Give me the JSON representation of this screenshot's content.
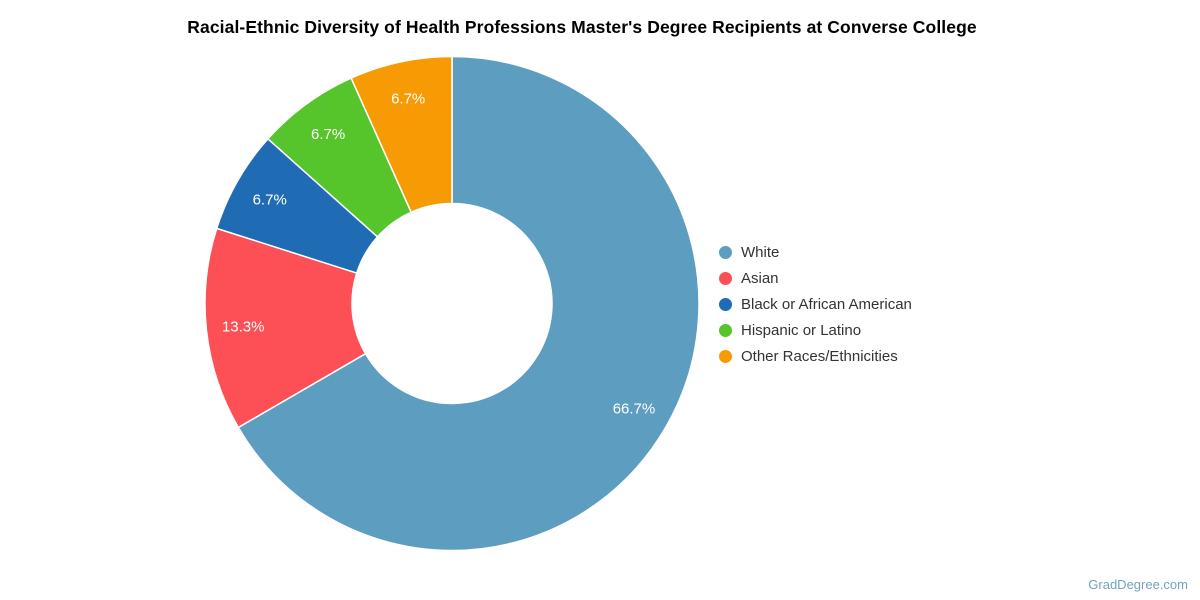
{
  "page": {
    "watermark": "GradDegree.com"
  },
  "chart_data": {
    "type": "pie",
    "subtype": "donut",
    "title": "Racial-Ethnic Diversity of Health Professions Master's Degree Recipients at Converse College",
    "unit": "%",
    "direction": "clockwise",
    "start_angle_deg": 0,
    "inner_radius_ratio": 0.405,
    "legend_position": "right",
    "slice_label_color": "#ffffff",
    "slices": [
      {
        "label": "White",
        "value": 66.7,
        "pct_label": "66.7%",
        "color": "#5d9dbf"
      },
      {
        "label": "Asian",
        "value": 13.3,
        "pct_label": "13.3%",
        "color": "#fc4f56"
      },
      {
        "label": "Black or African American",
        "value": 6.7,
        "pct_label": "6.7%",
        "color": "#1f6cb4"
      },
      {
        "label": "Hispanic or Latino",
        "value": 6.7,
        "pct_label": "6.7%",
        "color": "#56c52c"
      },
      {
        "label": "Other Races/Ethnicities",
        "value": 6.7,
        "pct_label": "6.7%",
        "color": "#f79b04"
      }
    ]
  }
}
